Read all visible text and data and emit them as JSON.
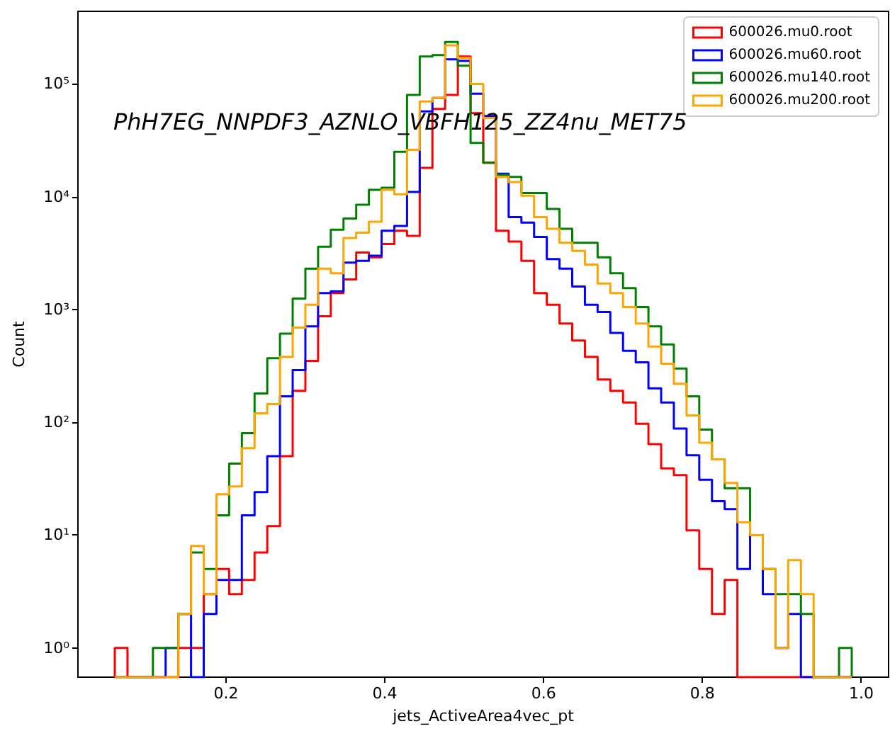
{
  "chart_data": {
    "type": "histogram",
    "xlabel": "jets_ActiveArea4vec_pt",
    "ylabel": "Count",
    "annotations": [
      "PhH7EG_NNPDF3_AZNLO_VBFH125_ZZ4nu_MET75"
    ],
    "bins": [
      0.06,
      0.076,
      0.092,
      0.108,
      0.124,
      0.14,
      0.156,
      0.172,
      0.188,
      0.204,
      0.22,
      0.236,
      0.252,
      0.268,
      0.284,
      0.3,
      0.316,
      0.332,
      0.348,
      0.364,
      0.38,
      0.396,
      0.412,
      0.428,
      0.444,
      0.46,
      0.476,
      0.492,
      0.508,
      0.524,
      0.54,
      0.556,
      0.572,
      0.588,
      0.604,
      0.62,
      0.636,
      0.652,
      0.668,
      0.684,
      0.7,
      0.716,
      0.732,
      0.748,
      0.764,
      0.78,
      0.796,
      0.812,
      0.828,
      0.844,
      0.86,
      0.876,
      0.892,
      0.908,
      0.924,
      0.94,
      0.956,
      0.972,
      0.988
    ],
    "series": [
      {
        "name": "600026.mu0.root",
        "color": "#ff0000",
        "values": [
          1,
          null,
          null,
          null,
          null,
          1,
          1,
          3,
          5,
          3,
          4,
          7,
          12,
          50,
          190,
          350,
          870,
          1400,
          1850,
          3200,
          2900,
          3800,
          5000,
          4500,
          18000,
          60000,
          80000,
          175000,
          55000,
          20000,
          5000,
          4000,
          2700,
          1400,
          1100,
          750,
          530,
          380,
          240,
          190,
          150,
          97,
          64,
          39,
          34,
          11,
          5,
          2,
          4,
          null,
          null,
          null,
          null,
          null,
          null,
          null,
          null,
          null
        ]
      },
      {
        "name": "600026.mu60.root",
        "color": "#0000ff",
        "values": [
          null,
          null,
          null,
          null,
          1,
          2,
          null,
          2,
          4,
          4,
          15,
          24,
          50,
          170,
          290,
          710,
          1400,
          1450,
          2600,
          2700,
          3000,
          5000,
          5500,
          11000,
          57000,
          75000,
          165000,
          160000,
          82000,
          52000,
          16000,
          6600,
          5900,
          4400,
          2800,
          2300,
          1600,
          1100,
          950,
          620,
          430,
          340,
          200,
          150,
          88,
          51,
          31,
          20,
          17,
          5,
          10,
          3,
          1,
          2,
          null,
          null,
          null,
          null
        ]
      },
      {
        "name": "600026.mu140.root",
        "color": "#008000",
        "values": [
          null,
          null,
          null,
          1,
          1,
          2,
          7,
          5,
          15,
          43,
          80,
          180,
          370,
          610,
          1250,
          2300,
          3600,
          5100,
          6400,
          8500,
          11500,
          12000,
          25000,
          80000,
          175000,
          180000,
          235000,
          145000,
          30000,
          20000,
          15600,
          15000,
          10800,
          10800,
          7800,
          5200,
          3900,
          3900,
          2900,
          2100,
          1550,
          1050,
          710,
          490,
          300,
          170,
          86,
          47,
          26,
          26,
          10,
          5,
          3,
          3,
          2,
          null,
          null,
          1
        ]
      },
      {
        "name": "600026.mu200.root",
        "color": "#ffa500",
        "values": [
          null,
          null,
          null,
          null,
          null,
          2,
          8,
          3,
          23,
          27,
          59,
          120,
          145,
          380,
          690,
          1100,
          2300,
          2100,
          4300,
          4800,
          6000,
          11500,
          10500,
          26000,
          70000,
          75000,
          220000,
          170000,
          100000,
          50000,
          15000,
          13500,
          10200,
          6600,
          5200,
          3900,
          3300,
          2500,
          1700,
          1400,
          1050,
          750,
          470,
          330,
          220,
          115,
          66,
          47,
          29,
          13,
          10,
          5,
          1,
          6,
          3,
          null,
          null,
          null
        ]
      }
    ],
    "xlim": [
      0.0136,
      1.0344
    ],
    "xticks": [
      0.2,
      0.4,
      0.6,
      0.8,
      {
        "value": 1,
        "label": "1.0"
      }
    ],
    "ylim": [
      0.55,
      440000
    ],
    "yticks": [
      {
        "value": 1,
        "label": "10⁰"
      },
      {
        "value": 10,
        "label": "10¹"
      },
      {
        "value": 100,
        "label": "10²"
      },
      {
        "value": 1000,
        "label": "10³"
      },
      {
        "value": 10000,
        "label": "10⁴"
      },
      {
        "value": 100000,
        "label": "10⁵"
      }
    ],
    "log": "y",
    "legend": "top right"
  }
}
